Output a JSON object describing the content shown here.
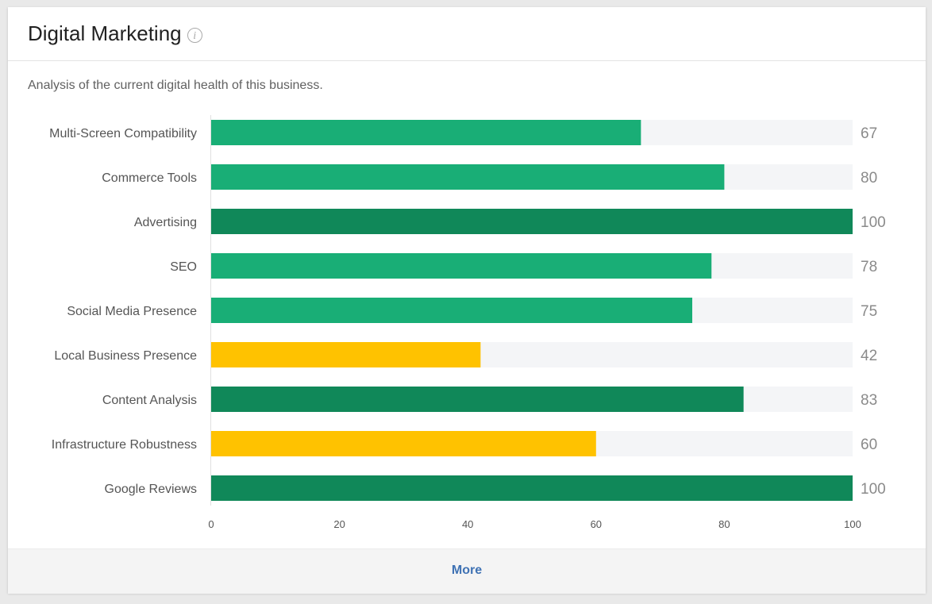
{
  "card": {
    "title": "Digital Marketing",
    "info_icon": "info-icon",
    "description": "Analysis of the current digital health of this business.",
    "more_label": "More"
  },
  "colors": {
    "green": "#19ae76",
    "dark_green": "#108859",
    "yellow": "#ffc200",
    "track": "#f4f5f7",
    "link": "#3f72b4"
  },
  "chart_data": {
    "type": "bar",
    "orientation": "horizontal",
    "categories": [
      "Multi-Screen Compatibility",
      "Commerce Tools",
      "Advertising",
      "SEO",
      "Social Media Presence",
      "Local Business Presence",
      "Content Analysis",
      "Infrastructure Robustness",
      "Google Reviews"
    ],
    "values": [
      67,
      80,
      100,
      78,
      75,
      42,
      83,
      60,
      100
    ],
    "bar_colors": [
      "#19ae76",
      "#19ae76",
      "#108859",
      "#19ae76",
      "#19ae76",
      "#ffc200",
      "#108859",
      "#ffc200",
      "#108859"
    ],
    "xlim": [
      0,
      100
    ],
    "xticks": [
      0,
      20,
      40,
      60,
      80,
      100
    ],
    "grid": false,
    "legend": "none"
  }
}
